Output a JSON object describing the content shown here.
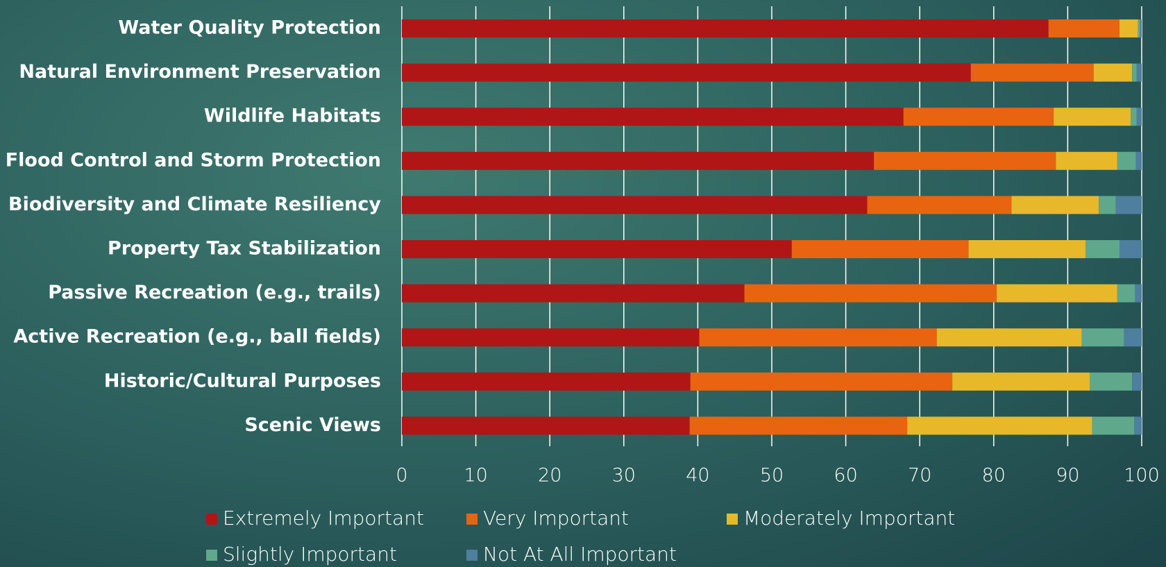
{
  "chart_data": {
    "type": "stacked-barh",
    "categories": [
      "Water Quality Protection",
      "Natural Environment Preservation",
      "Wildlife Habitats",
      "Flood Control and Storm Protection",
      "Biodiversity and Climate Resiliency",
      "Property Tax Stabilization",
      "Passive Recreation (e.g., trails)",
      "Active Recreation (e.g., ball fields)",
      "Historic/Cultural Purposes",
      "Scenic Views"
    ],
    "series": [
      {
        "name": "Extremely Important",
        "color": "#b01616",
        "values": [
          87.4,
          76.9,
          67.8,
          63.8,
          62.9,
          52.7,
          46.3,
          40.2,
          39.0,
          38.9
        ]
      },
      {
        "name": "Very Important",
        "color": "#e86410",
        "values": [
          9.6,
          16.6,
          20.3,
          24.6,
          19.5,
          23.9,
          34.1,
          32.1,
          35.4,
          29.4
        ]
      },
      {
        "name": "Moderately Important",
        "color": "#e6b82a",
        "values": [
          2.5,
          5.2,
          10.4,
          8.3,
          11.8,
          15.8,
          16.3,
          19.6,
          18.6,
          25.0
        ]
      },
      {
        "name": "Slightly Important",
        "color": "#5fa88c",
        "values": [
          0.3,
          0.6,
          0.8,
          2.5,
          2.3,
          4.6,
          2.4,
          5.7,
          5.7,
          5.7
        ]
      },
      {
        "name": "Not At All Important",
        "color": "#4f7f9e",
        "values": [
          0.2,
          0.7,
          0.7,
          0.8,
          3.5,
          3.0,
          0.9,
          2.4,
          1.3,
          1.0
        ]
      }
    ],
    "xlim": [
      0,
      100
    ],
    "xticks": [
      0,
      10,
      20,
      30,
      40,
      50,
      60,
      70,
      80,
      90,
      100
    ],
    "grid": true
  }
}
